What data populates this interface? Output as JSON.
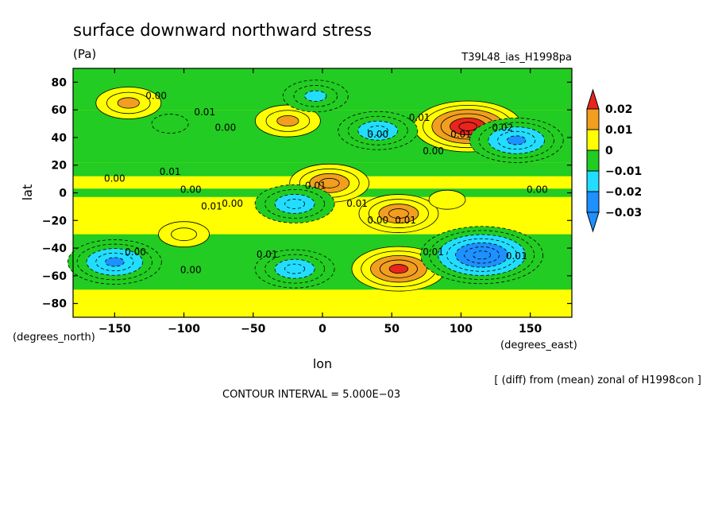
{
  "chart_data": {
    "type": "heatmap",
    "title": "surface downward northward stress",
    "units": "(Pa)",
    "run_label": "T39L48_ias_H1998pa",
    "xlabel": "lon",
    "ylabel": "lat",
    "x_unit_note": "(degrees_east)",
    "y_unit_note": "(degrees_north)",
    "xlim": [
      -180,
      180
    ],
    "ylim": [
      -90,
      90
    ],
    "xticks": [
      -150,
      -100,
      -50,
      0,
      50,
      100,
      150
    ],
    "xtick_labels": [
      "−150",
      "−100",
      "−50",
      "0",
      "50",
      "100",
      "150"
    ],
    "yticks": [
      -80,
      -60,
      -40,
      -20,
      0,
      20,
      40,
      60,
      80
    ],
    "ytick_labels": [
      "−80",
      "−60",
      "−40",
      "−20",
      "0",
      "20",
      "40",
      "60",
      "80"
    ],
    "footnote": "[ (diff) from (mean) zonal of H1998con ]",
    "contour_interval_text": "CONTOUR INTERVAL = 5.000E−03",
    "colorbar": {
      "labels": [
        "0.02",
        "0.01",
        "0",
        "−0.01",
        "−0.02",
        "−0.03"
      ],
      "levels": [
        0.02,
        0.01,
        0,
        -0.01,
        -0.02,
        -0.03
      ],
      "colors": [
        "#e8251c",
        "#f29e1f",
        "#ffff00",
        "#22cc22",
        "#22ddff",
        "#1e90ff",
        "#3366ff"
      ]
    },
    "colors": {
      "below_-0.03": "#1e90ff",
      "-0.03_to_-0.02": "#1e90ff",
      "-0.02_to_-0.01": "#22ddff",
      "-0.01_to_0": "#22cc22",
      "0_to_0.01": "#ffff00",
      "0.01_to_0.02": "#f29e1f",
      "above_0.02": "#e8251c"
    },
    "features": [
      {
        "lon": 105,
        "lat": 48,
        "value": 0.03
      },
      {
        "lon": 55,
        "lat": -55,
        "value": 0.025
      },
      {
        "lon": 55,
        "lat": -15,
        "value": 0.02
      },
      {
        "lon": 5,
        "lat": 7,
        "value": 0.02
      },
      {
        "lon": 115,
        "lat": -45,
        "value": -0.035
      },
      {
        "lon": -150,
        "lat": -50,
        "value": -0.025
      },
      {
        "lon": 140,
        "lat": 38,
        "value": -0.025
      },
      {
        "lon": 40,
        "lat": 45,
        "value": -0.02
      },
      {
        "lon": -20,
        "lat": -55,
        "value": -0.02
      },
      {
        "lon": -20,
        "lat": -8,
        "value": -0.02
      },
      {
        "lon": -140,
        "lat": 65,
        "value": 0.015
      },
      {
        "lon": -25,
        "lat": 52,
        "value": 0.015
      },
      {
        "lon": -5,
        "lat": 70,
        "value": -0.015
      },
      {
        "lon": 90,
        "lat": -5,
        "value": 0.005
      },
      {
        "lon": -110,
        "lat": 50,
        "value": -0.005
      },
      {
        "lon": -100,
        "lat": -30,
        "value": 0.01
      }
    ],
    "contour_labels": [
      {
        "text": "0.00",
        "lon": -120,
        "lat": 68
      },
      {
        "text": "0.01",
        "lon": -85,
        "lat": 56
      },
      {
        "text": "0.00",
        "lon": -70,
        "lat": 45
      },
      {
        "text": "0.00",
        "lon": -150,
        "lat": 8
      },
      {
        "text": "0.01",
        "lon": -110,
        "lat": 13
      },
      {
        "text": "0.00",
        "lon": -95,
        "lat": 0
      },
      {
        "text": "0.01",
        "lon": -80,
        "lat": -12
      },
      {
        "text": "0.00",
        "lon": -65,
        "lat": -10
      },
      {
        "text": "0.01",
        "lon": -5,
        "lat": 3
      },
      {
        "text": "0.01",
        "lon": 25,
        "lat": -10
      },
      {
        "text": "0.00",
        "lon": 40,
        "lat": 40
      },
      {
        "text": "0.01",
        "lon": 70,
        "lat": 52
      },
      {
        "text": "0.00",
        "lon": 80,
        "lat": 28
      },
      {
        "text": "0.01",
        "lon": 60,
        "lat": -22
      },
      {
        "text": "0.00",
        "lon": 40,
        "lat": -22
      },
      {
        "text": "0.00",
        "lon": 155,
        "lat": 0
      },
      {
        "text": "0.01",
        "lon": 100,
        "lat": 40
      },
      {
        "text": "0.02",
        "lon": 130,
        "lat": 45
      },
      {
        "text": "0.01",
        "lon": 140,
        "lat": -48
      },
      {
        "text": "0.01",
        "lon": 80,
        "lat": -45
      },
      {
        "text": "0.01",
        "lon": -40,
        "lat": -47
      },
      {
        "text": "0.00",
        "lon": -135,
        "lat": -45
      },
      {
        "text": "0.00",
        "lon": -95,
        "lat": -58
      }
    ]
  }
}
